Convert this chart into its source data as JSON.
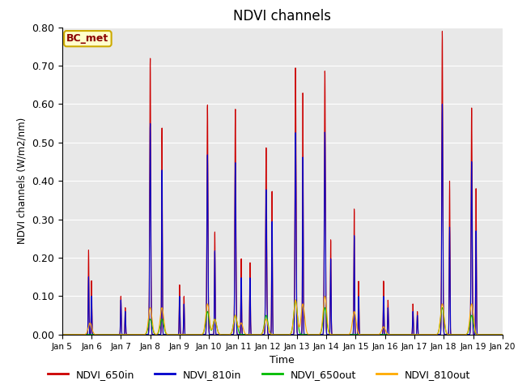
{
  "title": "NDVI channels",
  "xlabel": "Time",
  "ylabel": "NDVI channels (W/m2/nm)",
  "annotation": "BC_met",
  "ylim": [
    0.0,
    0.8
  ],
  "yticks": [
    0.0,
    0.1,
    0.2,
    0.3,
    0.4,
    0.5,
    0.6,
    0.7,
    0.8
  ],
  "xtick_labels": [
    "Jan 5",
    "Jan 6",
    "Jan 7",
    "Jan 8",
    "Jan 9",
    "Jan 10",
    "Jan 11",
    "Jan 12",
    "Jan 13",
    "Jan 14",
    "Jan 15",
    "Jan 16",
    "Jan 17",
    "Jan 18",
    "Jan 19",
    "Jan 20"
  ],
  "series": {
    "NDVI_650in": {
      "color": "#cc0000"
    },
    "NDVI_810in": {
      "color": "#0000cc"
    },
    "NDVI_650out": {
      "color": "#00bb00"
    },
    "NDVI_810out": {
      "color": "#ffaa00"
    }
  },
  "background_color": "#e8e8e8",
  "title_fontsize": 12
}
